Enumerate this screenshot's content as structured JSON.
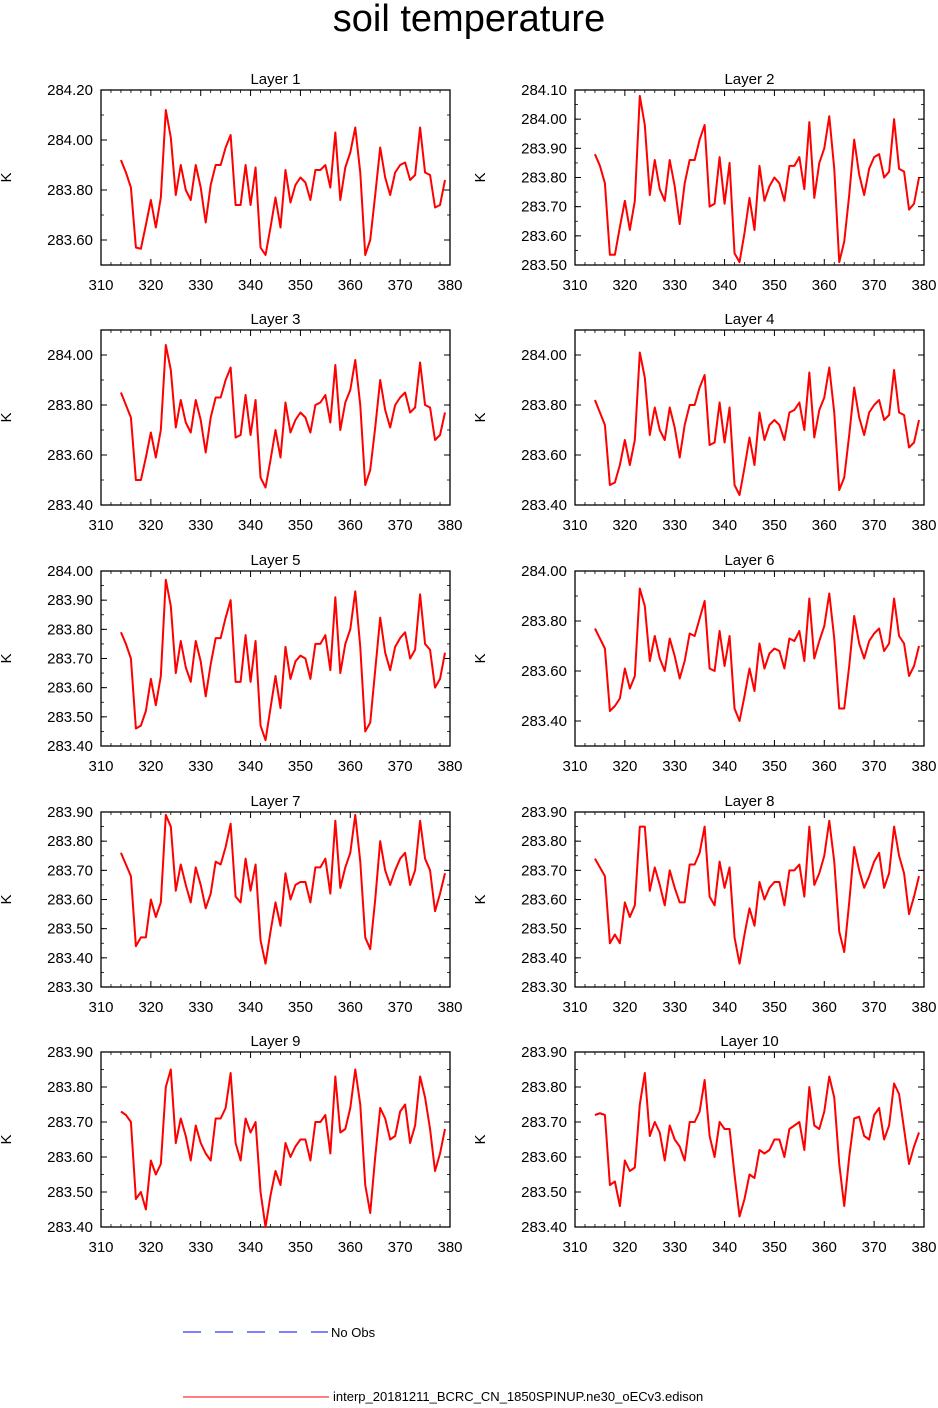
{
  "title": "soil temperature",
  "legend": {
    "obs_label": "No Obs",
    "obs_color": "#0000ff",
    "model_label": "interp_20181211_BCRC_CN_1850SPINUP.ne30_oECv3.edison",
    "model_color": "#ff0000"
  },
  "chart_data": [
    {
      "type": "line",
      "title": "Layer 1",
      "ylabel": "K",
      "xlim": [
        310,
        380
      ],
      "xticks": [
        310,
        320,
        330,
        340,
        350,
        360,
        370,
        380
      ],
      "ylim": [
        283.5,
        284.2
      ],
      "yticks": [
        "283.60",
        "283.80",
        "284.00",
        "284.20"
      ],
      "ytick_values": [
        283.6,
        283.8,
        284.0,
        284.2
      ],
      "x_start": 314,
      "series": [
        {
          "values": [
            283.92,
            283.87,
            283.81,
            283.57,
            283.565,
            283.66,
            283.76,
            283.65,
            283.77,
            284.12,
            284.01,
            283.78,
            283.9,
            283.8,
            283.76,
            283.9,
            283.81,
            283.67,
            283.82,
            283.9,
            283.9,
            283.97,
            284.02,
            283.74,
            283.74,
            283.9,
            283.74,
            283.89,
            283.57,
            283.54,
            283.65,
            283.77,
            283.65,
            283.88,
            283.75,
            283.82,
            283.85,
            283.83,
            283.76,
            283.88,
            283.88,
            283.9,
            283.81,
            284.03,
            283.76,
            283.89,
            283.95,
            284.05,
            283.87,
            283.54,
            283.6,
            283.78,
            283.97,
            283.85,
            283.78,
            283.87,
            283.9,
            283.91,
            283.84,
            283.86,
            284.05,
            283.87,
            283.86,
            283.73,
            283.74,
            283.84
          ]
        }
      ]
    },
    {
      "type": "line",
      "title": "Layer 2",
      "ylabel": "K",
      "xlim": [
        310,
        380
      ],
      "xticks": [
        310,
        320,
        330,
        340,
        350,
        360,
        370,
        380
      ],
      "ylim": [
        283.5,
        284.1
      ],
      "yticks": [
        "283.50",
        "283.60",
        "283.70",
        "283.80",
        "283.90",
        "284.00",
        "284.10"
      ],
      "ytick_values": [
        283.5,
        283.6,
        283.7,
        283.8,
        283.9,
        284.0,
        284.1
      ],
      "x_start": 314,
      "series": [
        {
          "values": [
            283.88,
            283.84,
            283.78,
            283.535,
            283.535,
            283.63,
            283.72,
            283.62,
            283.72,
            284.08,
            283.98,
            283.74,
            283.86,
            283.76,
            283.72,
            283.86,
            283.77,
            283.64,
            283.78,
            283.86,
            283.86,
            283.93,
            283.98,
            283.7,
            283.71,
            283.87,
            283.71,
            283.85,
            283.54,
            283.51,
            283.61,
            283.73,
            283.62,
            283.84,
            283.72,
            283.77,
            283.8,
            283.78,
            283.72,
            283.84,
            283.84,
            283.87,
            283.76,
            283.99,
            283.73,
            283.85,
            283.9,
            284.01,
            283.83,
            283.51,
            283.58,
            283.74,
            283.93,
            283.81,
            283.74,
            283.83,
            283.87,
            283.88,
            283.8,
            283.82,
            284.0,
            283.83,
            283.82,
            283.69,
            283.71,
            283.8
          ]
        }
      ]
    },
    {
      "type": "line",
      "title": "Layer 3",
      "ylabel": "K",
      "xlim": [
        310,
        380
      ],
      "xticks": [
        310,
        320,
        330,
        340,
        350,
        360,
        370,
        380
      ],
      "ylim": [
        283.4,
        284.1
      ],
      "yticks": [
        "283.40",
        "283.60",
        "283.80",
        "284.00"
      ],
      "ytick_values": [
        283.4,
        283.6,
        283.8,
        284.0
      ],
      "x_start": 314,
      "series": [
        {
          "values": [
            283.85,
            283.8,
            283.75,
            283.5,
            283.5,
            283.59,
            283.69,
            283.59,
            283.7,
            284.04,
            283.94,
            283.71,
            283.82,
            283.73,
            283.69,
            283.82,
            283.74,
            283.61,
            283.75,
            283.83,
            283.83,
            283.9,
            283.95,
            283.67,
            283.68,
            283.84,
            283.68,
            283.82,
            283.51,
            283.47,
            283.58,
            283.7,
            283.59,
            283.81,
            283.69,
            283.74,
            283.77,
            283.75,
            283.69,
            283.8,
            283.81,
            283.84,
            283.73,
            283.96,
            283.7,
            283.81,
            283.86,
            283.98,
            283.8,
            283.48,
            283.54,
            283.71,
            283.9,
            283.78,
            283.71,
            283.8,
            283.83,
            283.85,
            283.77,
            283.79,
            283.97,
            283.8,
            283.79,
            283.66,
            283.68,
            283.77
          ]
        }
      ]
    },
    {
      "type": "line",
      "title": "Layer 4",
      "ylabel": "K",
      "xlim": [
        310,
        380
      ],
      "xticks": [
        310,
        320,
        330,
        340,
        350,
        360,
        370,
        380
      ],
      "ylim": [
        283.4,
        284.1
      ],
      "yticks": [
        "283.40",
        "283.60",
        "283.80",
        "284.00"
      ],
      "ytick_values": [
        283.4,
        283.6,
        283.8,
        284.0
      ],
      "x_start": 314,
      "series": [
        {
          "values": [
            283.82,
            283.77,
            283.72,
            283.48,
            283.49,
            283.56,
            283.66,
            283.56,
            283.66,
            284.01,
            283.91,
            283.68,
            283.79,
            283.7,
            283.66,
            283.79,
            283.71,
            283.59,
            283.72,
            283.8,
            283.8,
            283.87,
            283.92,
            283.64,
            283.65,
            283.81,
            283.65,
            283.79,
            283.48,
            283.44,
            283.55,
            283.67,
            283.56,
            283.77,
            283.66,
            283.72,
            283.74,
            283.72,
            283.66,
            283.77,
            283.78,
            283.81,
            283.7,
            283.93,
            283.67,
            283.78,
            283.83,
            283.95,
            283.77,
            283.46,
            283.51,
            283.68,
            283.87,
            283.75,
            283.68,
            283.77,
            283.8,
            283.82,
            283.74,
            283.76,
            283.94,
            283.77,
            283.76,
            283.63,
            283.65,
            283.74
          ]
        }
      ]
    },
    {
      "type": "line",
      "title": "Layer 5",
      "ylabel": "K",
      "xlim": [
        310,
        380
      ],
      "xticks": [
        310,
        320,
        330,
        340,
        350,
        360,
        370,
        380
      ],
      "ylim": [
        283.4,
        284.0
      ],
      "yticks": [
        "283.40",
        "283.50",
        "283.60",
        "283.70",
        "283.80",
        "283.90",
        "284.00"
      ],
      "ytick_values": [
        283.4,
        283.5,
        283.6,
        283.7,
        283.8,
        283.9,
        284.0
      ],
      "x_start": 314,
      "series": [
        {
          "values": [
            283.79,
            283.75,
            283.7,
            283.46,
            283.47,
            283.52,
            283.63,
            283.54,
            283.64,
            283.97,
            283.88,
            283.65,
            283.76,
            283.67,
            283.62,
            283.76,
            283.69,
            283.57,
            283.68,
            283.77,
            283.77,
            283.84,
            283.9,
            283.62,
            283.62,
            283.78,
            283.62,
            283.76,
            283.47,
            283.42,
            283.53,
            283.64,
            283.53,
            283.74,
            283.63,
            283.69,
            283.71,
            283.7,
            283.63,
            283.75,
            283.75,
            283.78,
            283.66,
            283.91,
            283.65,
            283.75,
            283.8,
            283.93,
            283.74,
            283.45,
            283.48,
            283.66,
            283.84,
            283.72,
            283.66,
            283.74,
            283.77,
            283.79,
            283.7,
            283.73,
            283.92,
            283.75,
            283.73,
            283.6,
            283.63,
            283.72
          ]
        }
      ]
    },
    {
      "type": "line",
      "title": "Layer 6",
      "ylabel": "K",
      "xlim": [
        310,
        380
      ],
      "xticks": [
        310,
        320,
        330,
        340,
        350,
        360,
        370,
        380
      ],
      "ylim": [
        283.3,
        284.0
      ],
      "yticks": [
        "283.40",
        "283.60",
        "283.80",
        "284.00"
      ],
      "ytick_values": [
        283.4,
        283.6,
        283.8,
        284.0
      ],
      "x_start": 314,
      "series": [
        {
          "values": [
            283.77,
            283.73,
            283.69,
            283.44,
            283.46,
            283.49,
            283.61,
            283.53,
            283.58,
            283.93,
            283.86,
            283.64,
            283.74,
            283.65,
            283.6,
            283.73,
            283.66,
            283.57,
            283.64,
            283.75,
            283.74,
            283.81,
            283.88,
            283.61,
            283.6,
            283.76,
            283.62,
            283.74,
            283.45,
            283.4,
            283.5,
            283.61,
            283.52,
            283.71,
            283.61,
            283.67,
            283.69,
            283.68,
            283.61,
            283.73,
            283.72,
            283.76,
            283.64,
            283.89,
            283.65,
            283.72,
            283.78,
            283.91,
            283.73,
            283.45,
            283.45,
            283.62,
            283.82,
            283.71,
            283.65,
            283.72,
            283.75,
            283.77,
            283.68,
            283.71,
            283.89,
            283.74,
            283.71,
            283.58,
            283.62,
            283.7
          ]
        }
      ]
    },
    {
      "type": "line",
      "title": "Layer 7",
      "ylabel": "K",
      "xlim": [
        310,
        380
      ],
      "xticks": [
        310,
        320,
        330,
        340,
        350,
        360,
        370,
        380
      ],
      "ylim": [
        283.3,
        283.9
      ],
      "yticks": [
        "283.30",
        "283.40",
        "283.50",
        "283.60",
        "283.70",
        "283.80",
        "283.90"
      ],
      "ytick_values": [
        283.3,
        283.4,
        283.5,
        283.6,
        283.7,
        283.8,
        283.9
      ],
      "x_start": 314,
      "series": [
        {
          "values": [
            283.76,
            283.72,
            283.68,
            283.44,
            283.47,
            283.47,
            283.6,
            283.54,
            283.59,
            283.89,
            283.85,
            283.63,
            283.72,
            283.65,
            283.59,
            283.71,
            283.65,
            283.57,
            283.62,
            283.73,
            283.72,
            283.78,
            283.86,
            283.61,
            283.59,
            283.74,
            283.63,
            283.72,
            283.46,
            283.38,
            283.49,
            283.59,
            283.51,
            283.69,
            283.6,
            283.65,
            283.66,
            283.66,
            283.59,
            283.71,
            283.71,
            283.74,
            283.62,
            283.87,
            283.64,
            283.71,
            283.76,
            283.89,
            283.73,
            283.47,
            283.43,
            283.6,
            283.8,
            283.7,
            283.65,
            283.7,
            283.74,
            283.76,
            283.65,
            283.7,
            283.87,
            283.74,
            283.7,
            283.56,
            283.62,
            283.69
          ]
        }
      ]
    },
    {
      "type": "line",
      "title": "Layer 8",
      "ylabel": "K",
      "xlim": [
        310,
        380
      ],
      "xticks": [
        310,
        320,
        330,
        340,
        350,
        360,
        370,
        380
      ],
      "ylim": [
        283.3,
        283.9
      ],
      "yticks": [
        "283.30",
        "283.40",
        "283.50",
        "283.60",
        "283.70",
        "283.80",
        "283.90"
      ],
      "ytick_values": [
        283.3,
        283.4,
        283.5,
        283.6,
        283.7,
        283.8,
        283.9
      ],
      "x_start": 314,
      "series": [
        {
          "values": [
            283.74,
            283.71,
            283.68,
            283.45,
            283.48,
            283.45,
            283.59,
            283.54,
            283.58,
            283.85,
            283.85,
            283.63,
            283.71,
            283.65,
            283.58,
            283.7,
            283.64,
            283.59,
            283.59,
            283.72,
            283.72,
            283.76,
            283.85,
            283.61,
            283.58,
            283.73,
            283.64,
            283.71,
            283.47,
            283.38,
            283.48,
            283.57,
            283.51,
            283.66,
            283.6,
            283.64,
            283.66,
            283.66,
            283.58,
            283.7,
            283.7,
            283.72,
            283.61,
            283.85,
            283.65,
            283.69,
            283.75,
            283.87,
            283.73,
            283.49,
            283.42,
            283.59,
            283.78,
            283.7,
            283.64,
            283.68,
            283.73,
            283.76,
            283.64,
            283.69,
            283.85,
            283.75,
            283.69,
            283.55,
            283.61,
            283.68
          ]
        }
      ]
    },
    {
      "type": "line",
      "title": "Layer 9",
      "ylabel": "K",
      "xlim": [
        310,
        380
      ],
      "xticks": [
        310,
        320,
        330,
        340,
        350,
        360,
        370,
        380
      ],
      "ylim": [
        283.4,
        283.9
      ],
      "yticks": [
        "283.40",
        "283.50",
        "283.60",
        "283.70",
        "283.80",
        "283.90"
      ],
      "ytick_values": [
        283.4,
        283.5,
        283.6,
        283.7,
        283.8,
        283.9
      ],
      "x_start": 314,
      "series": [
        {
          "values": [
            283.73,
            283.72,
            283.7,
            283.48,
            283.5,
            283.45,
            283.59,
            283.55,
            283.58,
            283.8,
            283.85,
            283.64,
            283.71,
            283.66,
            283.59,
            283.69,
            283.64,
            283.61,
            283.59,
            283.71,
            283.71,
            283.74,
            283.84,
            283.64,
            283.59,
            283.71,
            283.67,
            283.7,
            283.5,
            283.4,
            283.49,
            283.56,
            283.52,
            283.64,
            283.6,
            283.63,
            283.65,
            283.65,
            283.59,
            283.7,
            283.7,
            283.72,
            283.61,
            283.83,
            283.67,
            283.68,
            283.74,
            283.85,
            283.75,
            283.52,
            283.44,
            283.6,
            283.74,
            283.71,
            283.65,
            283.66,
            283.73,
            283.75,
            283.64,
            283.69,
            283.83,
            283.77,
            283.68,
            283.56,
            283.61,
            283.68
          ]
        }
      ]
    },
    {
      "type": "line",
      "title": "Layer 10",
      "ylabel": "K",
      "xlim": [
        310,
        380
      ],
      "xticks": [
        310,
        320,
        330,
        340,
        350,
        360,
        370,
        380
      ],
      "ylim": [
        283.4,
        283.9
      ],
      "yticks": [
        "283.40",
        "283.50",
        "283.60",
        "283.70",
        "283.80",
        "283.90"
      ],
      "ytick_values": [
        283.4,
        283.5,
        283.6,
        283.7,
        283.8,
        283.9
      ],
      "x_start": 314,
      "series": [
        {
          "values": [
            283.72,
            283.725,
            283.72,
            283.52,
            283.53,
            283.46,
            283.59,
            283.56,
            283.57,
            283.75,
            283.84,
            283.66,
            283.7,
            283.67,
            283.59,
            283.69,
            283.65,
            283.63,
            283.59,
            283.7,
            283.7,
            283.73,
            283.82,
            283.66,
            283.6,
            283.7,
            283.68,
            283.68,
            283.55,
            283.43,
            283.48,
            283.55,
            283.54,
            283.62,
            283.61,
            283.62,
            283.65,
            283.65,
            283.6,
            283.68,
            283.69,
            283.7,
            283.62,
            283.8,
            283.69,
            283.68,
            283.73,
            283.83,
            283.77,
            283.58,
            283.46,
            283.6,
            283.71,
            283.715,
            283.66,
            283.65,
            283.72,
            283.74,
            283.65,
            283.69,
            283.81,
            283.78,
            283.68,
            283.58,
            283.63,
            283.67
          ]
        }
      ]
    }
  ]
}
